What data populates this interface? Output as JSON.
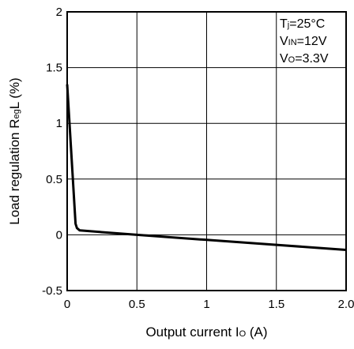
{
  "chart_data": {
    "type": "line",
    "xlabel": {
      "main": "Output current I",
      "sub": "O",
      "unit": " (A)"
    },
    "ylabel": {
      "main": "Load regulation R",
      "sub": "eg",
      "tail": "L (%)"
    },
    "xlim": [
      0,
      2.0
    ],
    "ylim": [
      -0.5,
      2
    ],
    "x_ticks": [
      {
        "value": 0,
        "label": "0"
      },
      {
        "value": 0.5,
        "label": "0.5"
      },
      {
        "value": 1,
        "label": "1"
      },
      {
        "value": 1.5,
        "label": "1.5"
      },
      {
        "value": 2.0,
        "label": "2.0"
      }
    ],
    "y_ticks": [
      {
        "value": -0.5,
        "label": "-0.5"
      },
      {
        "value": 0,
        "label": "0"
      },
      {
        "value": 0.5,
        "label": "0.5"
      },
      {
        "value": 1,
        "label": "1"
      },
      {
        "value": 1.5,
        "label": "1.5"
      },
      {
        "value": 2,
        "label": "2"
      }
    ],
    "grid": true,
    "annotations": [
      {
        "main": "T",
        "sub": "j",
        "tail": "=25°C"
      },
      {
        "main": "V",
        "sub": "IN",
        "tail": "=12V"
      },
      {
        "main": "V",
        "sub": "O",
        "tail": "=3.3V"
      }
    ],
    "series": [
      {
        "color": "#000000",
        "x": [
          0.0,
          0.06,
          0.07,
          0.09,
          0.5,
          1.0,
          1.5,
          2.0
        ],
        "y": [
          1.35,
          0.1,
          0.06,
          0.04,
          0.0,
          -0.045,
          -0.09,
          -0.135
        ]
      }
    ]
  }
}
